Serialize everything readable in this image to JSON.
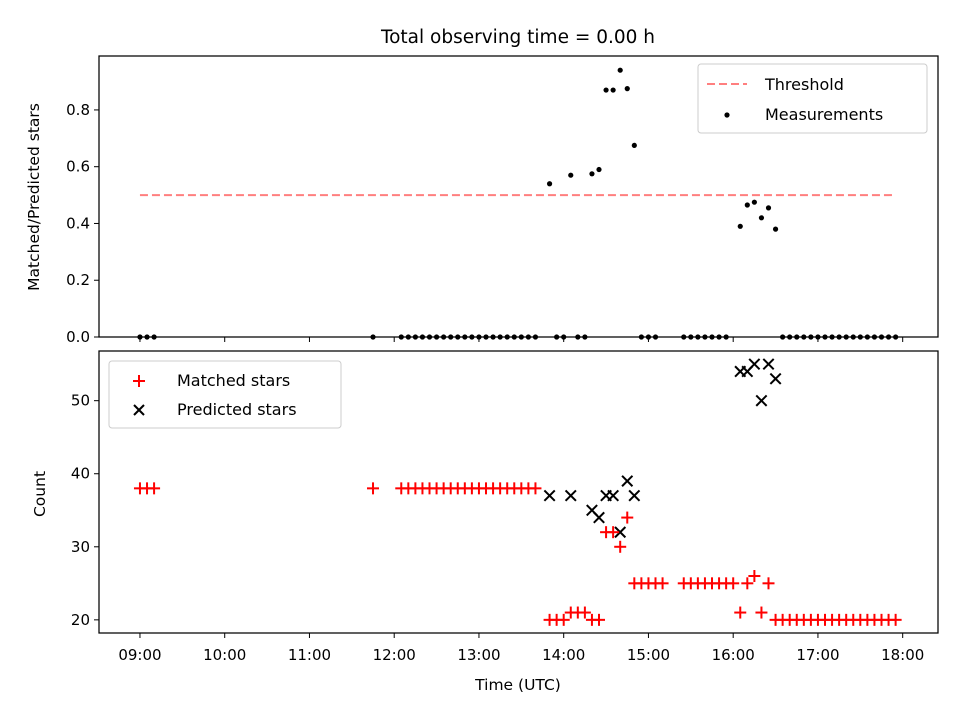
{
  "chart_data": [
    {
      "type": "scatter",
      "title": "Total observing time = 0.00 h",
      "ylabel": "Matched/Predicted stars",
      "xlim": [
        "08:31",
        "18:25"
      ],
      "ylim": [
        0,
        0.99
      ],
      "yticks": [
        "0.0",
        "0.2",
        "0.4",
        "0.6",
        "0.8"
      ],
      "legend_position": "upper right",
      "series": [
        {
          "name": "Threshold",
          "style": "dashed-line",
          "color": "#ff7f7f",
          "points": [
            [
              "09:00",
              0.5
            ],
            [
              "17:55",
              0.5
            ]
          ]
        },
        {
          "name": "Measurements",
          "style": "dot",
          "color": "#000000",
          "points": [
            [
              "09:00",
              0
            ],
            [
              "09:05",
              0
            ],
            [
              "09:10",
              0
            ],
            [
              "11:45",
              0
            ],
            [
              "12:05",
              0
            ],
            [
              "12:10",
              0
            ],
            [
              "12:15",
              0
            ],
            [
              "12:20",
              0
            ],
            [
              "12:25",
              0
            ],
            [
              "12:30",
              0
            ],
            [
              "12:35",
              0
            ],
            [
              "12:40",
              0
            ],
            [
              "12:45",
              0
            ],
            [
              "12:50",
              0
            ],
            [
              "12:55",
              0
            ],
            [
              "13:00",
              0
            ],
            [
              "13:05",
              0
            ],
            [
              "13:10",
              0
            ],
            [
              "13:15",
              0
            ],
            [
              "13:20",
              0
            ],
            [
              "13:25",
              0
            ],
            [
              "13:30",
              0
            ],
            [
              "13:35",
              0
            ],
            [
              "13:40",
              0
            ],
            [
              "13:50",
              0.54
            ],
            [
              "13:55",
              0
            ],
            [
              "14:00",
              0
            ],
            [
              "14:05",
              0.57
            ],
            [
              "14:10",
              0
            ],
            [
              "14:15",
              0
            ],
            [
              "14:20",
              0.575
            ],
            [
              "14:25",
              0.59
            ],
            [
              "14:30",
              0.87
            ],
            [
              "14:35",
              0.87
            ],
            [
              "14:40",
              0.94
            ],
            [
              "14:45",
              0.875
            ],
            [
              "14:50",
              0.675
            ],
            [
              "14:55",
              0
            ],
            [
              "15:00",
              0
            ],
            [
              "15:05",
              0
            ],
            [
              "15:25",
              0
            ],
            [
              "15:30",
              0
            ],
            [
              "15:35",
              0
            ],
            [
              "15:40",
              0
            ],
            [
              "15:45",
              0
            ],
            [
              "15:50",
              0
            ],
            [
              "15:55",
              0
            ],
            [
              "16:05",
              0.39
            ],
            [
              "16:10",
              0.465
            ],
            [
              "16:15",
              0.475
            ],
            [
              "16:20",
              0.42
            ],
            [
              "16:25",
              0.455
            ],
            [
              "16:30",
              0.38
            ],
            [
              "16:35",
              0
            ],
            [
              "16:40",
              0
            ],
            [
              "16:45",
              0
            ],
            [
              "16:50",
              0
            ],
            [
              "16:55",
              0
            ],
            [
              "17:00",
              0
            ],
            [
              "17:05",
              0
            ],
            [
              "17:10",
              0
            ],
            [
              "17:15",
              0
            ],
            [
              "17:20",
              0
            ],
            [
              "17:25",
              0
            ],
            [
              "17:30",
              0
            ],
            [
              "17:35",
              0
            ],
            [
              "17:40",
              0
            ],
            [
              "17:45",
              0
            ],
            [
              "17:50",
              0
            ],
            [
              "17:55",
              0
            ]
          ]
        }
      ]
    },
    {
      "type": "scatter",
      "xlabel": "Time (UTC)",
      "ylabel": "Count",
      "xlim": [
        "08:31",
        "18:25"
      ],
      "ylim": [
        18.2,
        56.8
      ],
      "xticks": [
        "09:00",
        "10:00",
        "11:00",
        "12:00",
        "13:00",
        "14:00",
        "15:00",
        "16:00",
        "17:00",
        "18:00"
      ],
      "yticks": [
        "20",
        "30",
        "40",
        "50"
      ],
      "legend_position": "upper left",
      "series": [
        {
          "name": "Matched stars",
          "marker": "plus",
          "color": "#ff0000",
          "points": [
            [
              "09:00",
              38
            ],
            [
              "09:05",
              38
            ],
            [
              "09:10",
              38
            ],
            [
              "11:45",
              38
            ],
            [
              "12:05",
              38
            ],
            [
              "12:10",
              38
            ],
            [
              "12:15",
              38
            ],
            [
              "12:20",
              38
            ],
            [
              "12:25",
              38
            ],
            [
              "12:30",
              38
            ],
            [
              "12:35",
              38
            ],
            [
              "12:40",
              38
            ],
            [
              "12:45",
              38
            ],
            [
              "12:50",
              38
            ],
            [
              "12:55",
              38
            ],
            [
              "13:00",
              38
            ],
            [
              "13:05",
              38
            ],
            [
              "13:10",
              38
            ],
            [
              "13:15",
              38
            ],
            [
              "13:20",
              38
            ],
            [
              "13:25",
              38
            ],
            [
              "13:30",
              38
            ],
            [
              "13:35",
              38
            ],
            [
              "13:40",
              38
            ],
            [
              "13:50",
              20
            ],
            [
              "13:55",
              20
            ],
            [
              "14:00",
              20
            ],
            [
              "14:05",
              21
            ],
            [
              "14:10",
              21
            ],
            [
              "14:15",
              21
            ],
            [
              "14:20",
              20
            ],
            [
              "14:25",
              20
            ],
            [
              "14:30",
              32
            ],
            [
              "14:35",
              32
            ],
            [
              "14:40",
              30
            ],
            [
              "14:45",
              34
            ],
            [
              "14:50",
              25
            ],
            [
              "14:55",
              25
            ],
            [
              "15:00",
              25
            ],
            [
              "15:05",
              25
            ],
            [
              "15:10",
              25
            ],
            [
              "15:25",
              25
            ],
            [
              "15:30",
              25
            ],
            [
              "15:35",
              25
            ],
            [
              "15:40",
              25
            ],
            [
              "15:45",
              25
            ],
            [
              "15:50",
              25
            ],
            [
              "15:55",
              25
            ],
            [
              "16:00",
              25
            ],
            [
              "16:05",
              21
            ],
            [
              "16:10",
              25
            ],
            [
              "16:15",
              26
            ],
            [
              "16:20",
              21
            ],
            [
              "16:25",
              25
            ],
            [
              "16:30",
              20
            ],
            [
              "16:35",
              20
            ],
            [
              "16:40",
              20
            ],
            [
              "16:45",
              20
            ],
            [
              "16:50",
              20
            ],
            [
              "16:55",
              20
            ],
            [
              "17:00",
              20
            ],
            [
              "17:05",
              20
            ],
            [
              "17:10",
              20
            ],
            [
              "17:15",
              20
            ],
            [
              "17:20",
              20
            ],
            [
              "17:25",
              20
            ],
            [
              "17:30",
              20
            ],
            [
              "17:35",
              20
            ],
            [
              "17:40",
              20
            ],
            [
              "17:45",
              20
            ],
            [
              "17:50",
              20
            ],
            [
              "17:55",
              20
            ]
          ]
        },
        {
          "name": "Predicted stars",
          "marker": "x",
          "color": "#000000",
          "points": [
            [
              "13:50",
              37
            ],
            [
              "14:05",
              37
            ],
            [
              "14:20",
              35
            ],
            [
              "14:25",
              34
            ],
            [
              "14:30",
              37
            ],
            [
              "14:35",
              37
            ],
            [
              "14:40",
              32
            ],
            [
              "14:45",
              39
            ],
            [
              "14:50",
              37
            ],
            [
              "16:05",
              54
            ],
            [
              "16:10",
              54
            ],
            [
              "16:15",
              55
            ],
            [
              "16:20",
              50
            ],
            [
              "16:25",
              55
            ],
            [
              "16:30",
              53
            ]
          ]
        }
      ]
    }
  ]
}
